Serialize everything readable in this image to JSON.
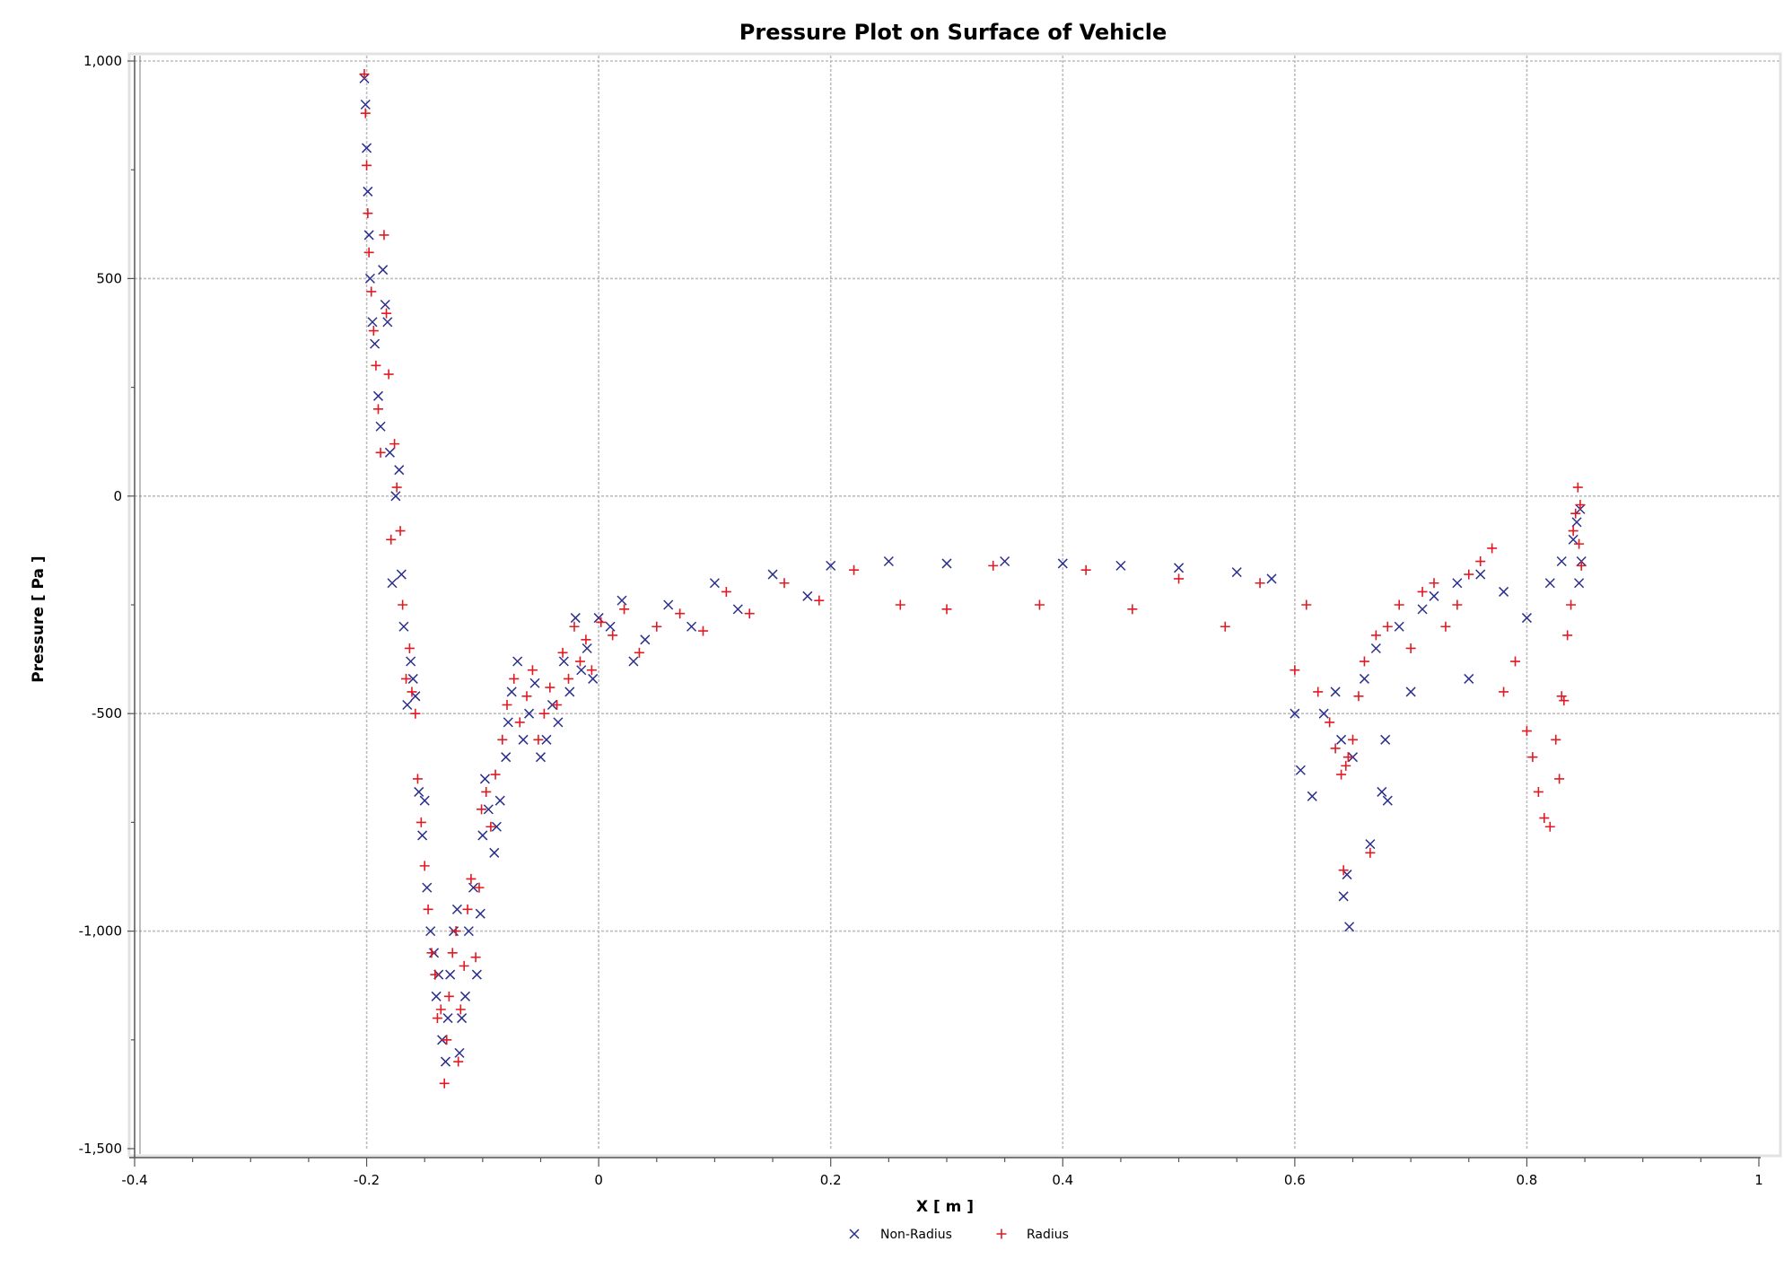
{
  "chart_data": {
    "type": "scatter",
    "title": "Pressure Plot on Surface of Vehicle",
    "xlabel": "X [ m ]",
    "ylabel": "Pressure [ Pa ]",
    "xlim": [
      -0.4,
      1.0
    ],
    "ylim": [
      -1500,
      1000
    ],
    "x_ticks": [
      -0.4,
      -0.2,
      0,
      0.2,
      0.4,
      0.6,
      0.8,
      1
    ],
    "x_tick_labels": [
      "-0.4",
      "-0.2",
      "0",
      "0.2",
      "0.4",
      "0.6",
      "0.8",
      "1"
    ],
    "y_ticks": [
      1000,
      500,
      0,
      -500,
      -1000,
      -1500
    ],
    "y_tick_labels": [
      "1,000",
      "500",
      "0",
      "-500",
      "-1,000",
      "-1,500"
    ],
    "grid": true,
    "legend_position": "bottom-center",
    "series": [
      {
        "name": "Non-Radius",
        "marker": "x",
        "color": "#2b2f8c",
        "points": [
          [
            -0.202,
            960
          ],
          [
            -0.201,
            900
          ],
          [
            -0.2,
            800
          ],
          [
            -0.199,
            700
          ],
          [
            -0.198,
            600
          ],
          [
            -0.197,
            500
          ],
          [
            -0.195,
            400
          ],
          [
            -0.193,
            350
          ],
          [
            -0.19,
            230
          ],
          [
            -0.188,
            160
          ],
          [
            -0.186,
            520
          ],
          [
            -0.184,
            440
          ],
          [
            -0.182,
            400
          ],
          [
            -0.18,
            100
          ],
          [
            -0.178,
            -200
          ],
          [
            -0.175,
            0
          ],
          [
            -0.172,
            60
          ],
          [
            -0.17,
            -180
          ],
          [
            -0.168,
            -300
          ],
          [
            -0.165,
            -480
          ],
          [
            -0.162,
            -380
          ],
          [
            -0.16,
            -420
          ],
          [
            -0.158,
            -460
          ],
          [
            -0.155,
            -680
          ],
          [
            -0.152,
            -780
          ],
          [
            -0.15,
            -700
          ],
          [
            -0.148,
            -900
          ],
          [
            -0.145,
            -1000
          ],
          [
            -0.142,
            -1050
          ],
          [
            -0.14,
            -1150
          ],
          [
            -0.138,
            -1100
          ],
          [
            -0.135,
            -1250
          ],
          [
            -0.132,
            -1300
          ],
          [
            -0.13,
            -1200
          ],
          [
            -0.128,
            -1100
          ],
          [
            -0.125,
            -1000
          ],
          [
            -0.122,
            -950
          ],
          [
            -0.12,
            -1280
          ],
          [
            -0.118,
            -1200
          ],
          [
            -0.115,
            -1150
          ],
          [
            -0.112,
            -1000
          ],
          [
            -0.108,
            -900
          ],
          [
            -0.105,
            -1100
          ],
          [
            -0.102,
            -960
          ],
          [
            -0.1,
            -780
          ],
          [
            -0.098,
            -650
          ],
          [
            -0.095,
            -720
          ],
          [
            -0.09,
            -820
          ],
          [
            -0.088,
            -760
          ],
          [
            -0.085,
            -700
          ],
          [
            -0.08,
            -600
          ],
          [
            -0.078,
            -520
          ],
          [
            -0.075,
            -450
          ],
          [
            -0.07,
            -380
          ],
          [
            -0.065,
            -560
          ],
          [
            -0.06,
            -500
          ],
          [
            -0.055,
            -430
          ],
          [
            -0.05,
            -600
          ],
          [
            -0.045,
            -560
          ],
          [
            -0.04,
            -480
          ],
          [
            -0.035,
            -520
          ],
          [
            -0.03,
            -380
          ],
          [
            -0.025,
            -450
          ],
          [
            -0.02,
            -280
          ],
          [
            -0.015,
            -400
          ],
          [
            -0.01,
            -350
          ],
          [
            -0.005,
            -420
          ],
          [
            0.0,
            -280
          ],
          [
            0.01,
            -300
          ],
          [
            0.02,
            -240
          ],
          [
            0.03,
            -380
          ],
          [
            0.04,
            -330
          ],
          [
            0.06,
            -250
          ],
          [
            0.08,
            -300
          ],
          [
            0.1,
            -200
          ],
          [
            0.12,
            -260
          ],
          [
            0.15,
            -180
          ],
          [
            0.18,
            -230
          ],
          [
            0.2,
            -160
          ],
          [
            0.25,
            -150
          ],
          [
            0.3,
            -155
          ],
          [
            0.35,
            -150
          ],
          [
            0.4,
            -155
          ],
          [
            0.45,
            -160
          ],
          [
            0.5,
            -165
          ],
          [
            0.55,
            -175
          ],
          [
            0.58,
            -190
          ],
          [
            0.6,
            -500
          ],
          [
            0.605,
            -630
          ],
          [
            0.615,
            -690
          ],
          [
            0.625,
            -500
          ],
          [
            0.635,
            -450
          ],
          [
            0.64,
            -560
          ],
          [
            0.642,
            -920
          ],
          [
            0.645,
            -870
          ],
          [
            0.647,
            -990
          ],
          [
            0.65,
            -600
          ],
          [
            0.66,
            -420
          ],
          [
            0.665,
            -800
          ],
          [
            0.67,
            -350
          ],
          [
            0.675,
            -680
          ],
          [
            0.678,
            -560
          ],
          [
            0.68,
            -700
          ],
          [
            0.69,
            -300
          ],
          [
            0.7,
            -450
          ],
          [
            0.71,
            -260
          ],
          [
            0.72,
            -230
          ],
          [
            0.74,
            -200
          ],
          [
            0.75,
            -420
          ],
          [
            0.76,
            -180
          ],
          [
            0.78,
            -220
          ],
          [
            0.8,
            -280
          ],
          [
            0.82,
            -200
          ],
          [
            0.83,
            -150
          ],
          [
            0.84,
            -100
          ],
          [
            0.843,
            -60
          ],
          [
            0.845,
            -200
          ],
          [
            0.846,
            -30
          ],
          [
            0.847,
            -150
          ]
        ]
      },
      {
        "name": "Radius",
        "marker": "+",
        "color": "#e01b24",
        "points": [
          [
            -0.202,
            970
          ],
          [
            -0.201,
            880
          ],
          [
            -0.2,
            760
          ],
          [
            -0.199,
            650
          ],
          [
            -0.198,
            560
          ],
          [
            -0.196,
            470
          ],
          [
            -0.194,
            380
          ],
          [
            -0.192,
            300
          ],
          [
            -0.19,
            200
          ],
          [
            -0.188,
            100
          ],
          [
            -0.185,
            600
          ],
          [
            -0.183,
            420
          ],
          [
            -0.181,
            280
          ],
          [
            -0.179,
            -100
          ],
          [
            -0.176,
            120
          ],
          [
            -0.174,
            20
          ],
          [
            -0.171,
            -80
          ],
          [
            -0.169,
            -250
          ],
          [
            -0.166,
            -420
          ],
          [
            -0.163,
            -350
          ],
          [
            -0.161,
            -450
          ],
          [
            -0.158,
            -500
          ],
          [
            -0.156,
            -650
          ],
          [
            -0.153,
            -750
          ],
          [
            -0.15,
            -850
          ],
          [
            -0.147,
            -950
          ],
          [
            -0.144,
            -1050
          ],
          [
            -0.141,
            -1100
          ],
          [
            -0.139,
            -1200
          ],
          [
            -0.136,
            -1180
          ],
          [
            -0.133,
            -1350
          ],
          [
            -0.131,
            -1250
          ],
          [
            -0.129,
            -1150
          ],
          [
            -0.126,
            -1050
          ],
          [
            -0.123,
            -1000
          ],
          [
            -0.121,
            -1300
          ],
          [
            -0.119,
            -1180
          ],
          [
            -0.116,
            -1080
          ],
          [
            -0.113,
            -950
          ],
          [
            -0.11,
            -880
          ],
          [
            -0.106,
            -1060
          ],
          [
            -0.103,
            -900
          ],
          [
            -0.101,
            -720
          ],
          [
            -0.097,
            -680
          ],
          [
            -0.093,
            -760
          ],
          [
            -0.089,
            -640
          ],
          [
            -0.083,
            -560
          ],
          [
            -0.079,
            -480
          ],
          [
            -0.073,
            -420
          ],
          [
            -0.068,
            -520
          ],
          [
            -0.062,
            -460
          ],
          [
            -0.057,
            -400
          ],
          [
            -0.052,
            -560
          ],
          [
            -0.047,
            -500
          ],
          [
            -0.042,
            -440
          ],
          [
            -0.036,
            -480
          ],
          [
            -0.031,
            -360
          ],
          [
            -0.026,
            -420
          ],
          [
            -0.021,
            -300
          ],
          [
            -0.016,
            -380
          ],
          [
            -0.011,
            -330
          ],
          [
            -0.006,
            -400
          ],
          [
            0.002,
            -290
          ],
          [
            0.012,
            -320
          ],
          [
            0.022,
            -260
          ],
          [
            0.035,
            -360
          ],
          [
            0.05,
            -300
          ],
          [
            0.07,
            -270
          ],
          [
            0.09,
            -310
          ],
          [
            0.11,
            -220
          ],
          [
            0.13,
            -270
          ],
          [
            0.16,
            -200
          ],
          [
            0.19,
            -240
          ],
          [
            0.22,
            -170
          ],
          [
            0.26,
            -250
          ],
          [
            0.3,
            -260
          ],
          [
            0.34,
            -160
          ],
          [
            0.38,
            -250
          ],
          [
            0.42,
            -170
          ],
          [
            0.46,
            -260
          ],
          [
            0.5,
            -190
          ],
          [
            0.54,
            -300
          ],
          [
            0.57,
            -200
          ],
          [
            0.6,
            -400
          ],
          [
            0.61,
            -250
          ],
          [
            0.62,
            -450
          ],
          [
            0.63,
            -520
          ],
          [
            0.635,
            -580
          ],
          [
            0.64,
            -640
          ],
          [
            0.642,
            -860
          ],
          [
            0.644,
            -620
          ],
          [
            0.646,
            -600
          ],
          [
            0.65,
            -560
          ],
          [
            0.655,
            -460
          ],
          [
            0.66,
            -380
          ],
          [
            0.665,
            -820
          ],
          [
            0.67,
            -320
          ],
          [
            0.68,
            -300
          ],
          [
            0.69,
            -250
          ],
          [
            0.7,
            -350
          ],
          [
            0.71,
            -220
          ],
          [
            0.72,
            -200
          ],
          [
            0.73,
            -300
          ],
          [
            0.74,
            -250
          ],
          [
            0.75,
            -180
          ],
          [
            0.76,
            -150
          ],
          [
            0.77,
            -120
          ],
          [
            0.78,
            -450
          ],
          [
            0.79,
            -380
          ],
          [
            0.8,
            -540
          ],
          [
            0.805,
            -600
          ],
          [
            0.81,
            -680
          ],
          [
            0.815,
            -740
          ],
          [
            0.82,
            -760
          ],
          [
            0.825,
            -560
          ],
          [
            0.828,
            -650
          ],
          [
            0.83,
            -460
          ],
          [
            0.832,
            -470
          ],
          [
            0.835,
            -320
          ],
          [
            0.838,
            -250
          ],
          [
            0.84,
            -80
          ],
          [
            0.842,
            -40
          ],
          [
            0.844,
            20
          ],
          [
            0.845,
            -110
          ],
          [
            0.846,
            -20
          ],
          [
            0.847,
            -160
          ]
        ]
      }
    ]
  }
}
